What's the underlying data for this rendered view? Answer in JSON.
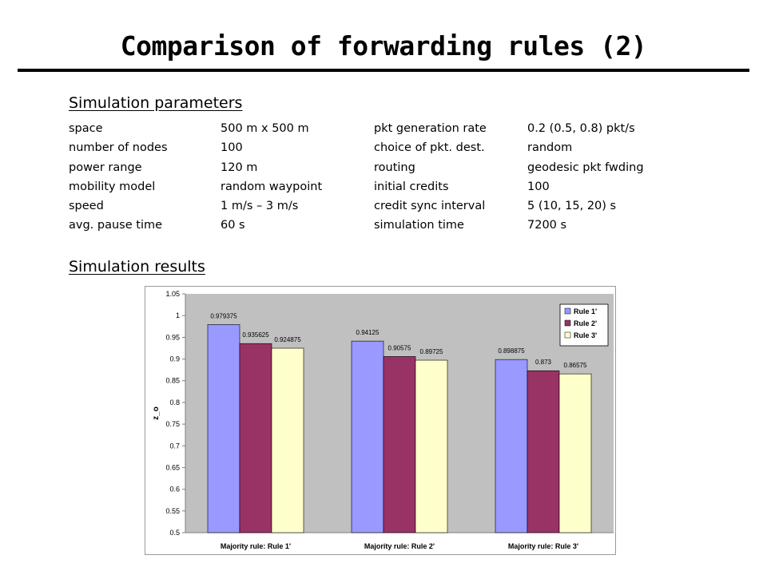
{
  "slide": {
    "title": "Comparison of forwarding rules (2)",
    "params_heading": "Simulation parameters",
    "results_heading": "Simulation results"
  },
  "parameters": [
    [
      "space",
      "500 m x 500 m",
      "pkt generation rate",
      "0.2 (0.5, 0.8) pkt/s"
    ],
    [
      "number of nodes",
      "100",
      "choice of pkt. dest.",
      "random"
    ],
    [
      "power range",
      "120 m",
      "routing",
      "geodesic pkt fwding"
    ],
    [
      "mobility model",
      "random waypoint",
      "initial credits",
      "100"
    ],
    [
      "speed",
      "1 m/s – 3 m/s",
      "credit sync interval",
      "5 (10, 15, 20) s"
    ],
    [
      "avg. pause time",
      "60 s",
      "simulation time",
      "7200 s"
    ]
  ],
  "chart_data": {
    "type": "bar",
    "categories": [
      "Majority rule: Rule 1'",
      "Majority rule: Rule 2'",
      "Majority rule: Rule 3'"
    ],
    "series": [
      {
        "name": "Rule 1'",
        "color": "#9999ff",
        "values": [
          0.979375,
          0.94125,
          0.898875
        ],
        "labels": [
          "0.979375",
          "0.94125",
          "0.898875"
        ]
      },
      {
        "name": "Rule 2'",
        "color": "#993366",
        "values": [
          0.935625,
          0.90575,
          0.873
        ],
        "labels": [
          "0.935625",
          "0.90575",
          "0.873"
        ]
      },
      {
        "name": "Rule 3'",
        "color": "#ffffcc",
        "values": [
          0.924875,
          0.89725,
          0.86575
        ],
        "labels": [
          "0.924875",
          "0.89725",
          "0.86575"
        ]
      }
    ],
    "ylabel": "z_o",
    "xlabel": "",
    "ylim": [
      0.5,
      1.05
    ],
    "yticks": [
      "0.5",
      "0.55",
      "0.6",
      "0.65",
      "0.7",
      "0.75",
      "0.8",
      "0.85",
      "0.9",
      "0.95",
      "1",
      "1.05"
    ],
    "plot_background": "#c0c0c0",
    "legend_placement": "top-right",
    "grid": false
  }
}
